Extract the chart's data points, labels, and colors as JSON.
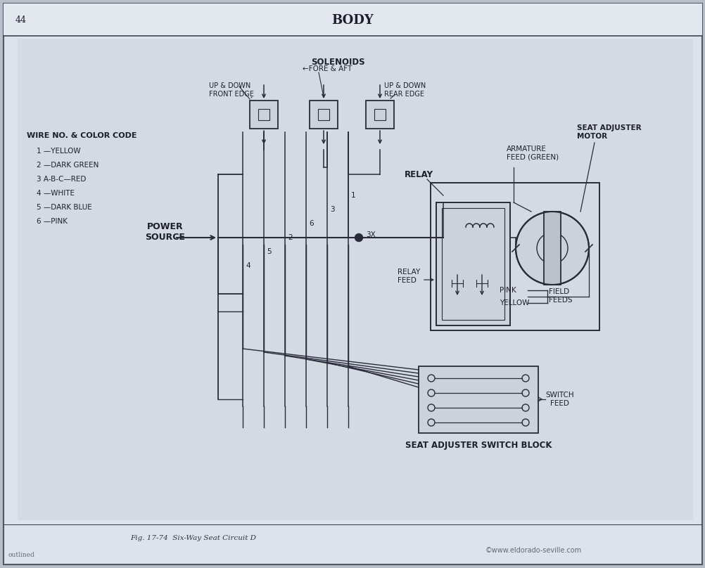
{
  "outer_bg": "#b8bfc8",
  "page_bg": "#cdd4dc",
  "inner_bg": "#c8d0d8",
  "title": "BODY",
  "page_num": "44",
  "fig_caption": "Fig. 17-74  Six-Way Seat Circuit D",
  "watermark": "©www.eldorado-seville.com",
  "wire_color_title": "WIRE NO. & COLOR CODE",
  "wire_colors": [
    "1 —YELLOW",
    "2 —DARK GREEN",
    "3 A-B-C—RED",
    "4 —WHITE",
    "5 —DARK BLUE",
    "6 —PINK"
  ],
  "solenoids_label": "SOLENOIDS",
  "power_source_label": "POWER\nSOURCE",
  "relay_label": "RELAY",
  "relay_feed_label": "RELAY\nFEED",
  "seat_adjuster_motor_label": "SEAT ADJUSTER\nMOTOR",
  "armature_feed_label": "ARMATURE\nFEED (GREEN)",
  "three_x_label": "3X",
  "field_feeds_label": "FIELD\nFEEDS",
  "pink_label": "PINK",
  "yellow_label": "YELLOW",
  "switch_feed_label": "SWITCH\nFEED",
  "seat_adjuster_switch_label": "SEAT ADJUSTER SWITCH BLOCK",
  "lc": "#2a2a3a",
  "tc": "#1e1e2e"
}
